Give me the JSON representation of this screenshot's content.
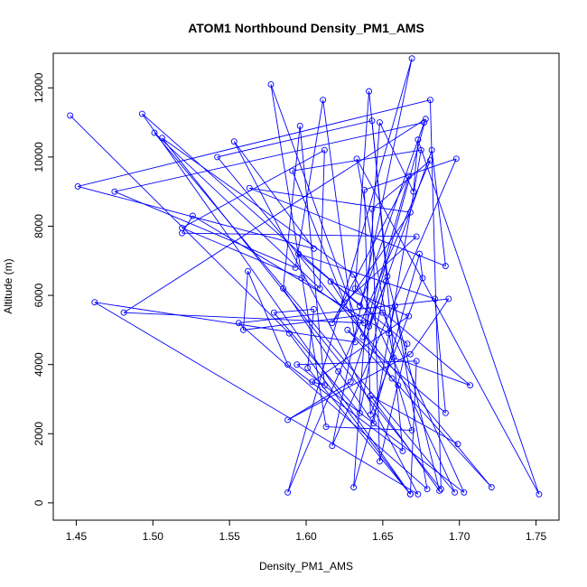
{
  "chart_data": {
    "type": "line",
    "title": "ATOM1 Northbound Density_PM1_AMS",
    "xlabel": "Density_PM1_AMS",
    "ylabel": "Altitude (m)",
    "xlim": [
      1.435,
      1.765
    ],
    "ylim": [
      -500,
      13000
    ],
    "x_ticks": [
      1.45,
      1.5,
      1.55,
      1.6,
      1.65,
      1.7,
      1.75
    ],
    "x_tick_labels": [
      "1.45",
      "1.50",
      "1.55",
      "1.60",
      "1.65",
      "1.70",
      "1.75"
    ],
    "y_ticks": [
      0,
      2000,
      4000,
      6000,
      8000,
      10000,
      12000
    ],
    "y_tick_labels": [
      "0",
      "2000",
      "4000",
      "6000",
      "8000",
      "10000",
      "12000"
    ],
    "grid": false,
    "series": [
      {
        "color": "#0000ff",
        "marker": "open-circle",
        "x": [
          1.446,
          1.589,
          1.668,
          1.493,
          1.635,
          1.677,
          1.475,
          1.593,
          1.611,
          1.632,
          1.462,
          1.673,
          1.553,
          1.605,
          1.451,
          1.681,
          1.688,
          1.506,
          1.631,
          1.697,
          1.501,
          1.609,
          1.612,
          1.519,
          1.597,
          1.638,
          1.481,
          1.678,
          1.641,
          1.652,
          1.635,
          1.579,
          1.605,
          1.601,
          1.668,
          1.672,
          1.594,
          1.703,
          1.65,
          1.559,
          1.562,
          1.588,
          1.663,
          1.643,
          1.542,
          1.721,
          1.656,
          1.616,
          1.667,
          1.604,
          1.612,
          1.596,
          1.585,
          1.621,
          1.644,
          1.675,
          1.591,
          1.625,
          1.672,
          1.519,
          1.526,
          1.654,
          1.658,
          1.679,
          1.556,
          1.693,
          1.668,
          1.588,
          1.629,
          1.682,
          1.691,
          1.563,
          1.668,
          1.617,
          1.667,
          1.637,
          1.577,
          1.613,
          1.669,
          1.66,
          1.627,
          1.691,
          1.684,
          1.595,
          1.666,
          1.648,
          1.643,
          1.681,
          1.588,
          1.669,
          1.617,
          1.698,
          1.638,
          1.642,
          1.676,
          1.674,
          1.631,
          1.648,
          1.67,
          1.673,
          1.752,
          1.633,
          1.657,
          1.707,
          1.632,
          1.641,
          1.653,
          1.687,
          1.642,
          1.699
        ],
        "y": [
          11200,
          4900,
          250,
          11250,
          5700,
          11000,
          9000,
          6800,
          11650,
          4650,
          5800,
          250,
          10450,
          7350,
          9150,
          11650,
          400,
          10550,
          6600,
          300,
          10700,
          6200,
          10200,
          7950,
          6500,
          5200,
          5500,
          11100,
          5100,
          6400,
          2600,
          5500,
          5600,
          3900,
          250,
          4100,
          4000,
          300,
          5500,
          5000,
          6700,
          4000,
          1500,
          11050,
          10000,
          450,
          3600,
          6400,
          5400,
          3500,
          3400,
          10900,
          6200,
          3800,
          2300,
          10200,
          9600,
          5800,
          7700,
          7800,
          8300,
          4900,
          5700,
          400,
          5200,
          5900,
          4300,
          2400,
          3500,
          10200,
          6850,
          9100,
          8400,
          5200,
          9450,
          4800,
          12100,
          2200,
          2100,
          3400,
          5000,
          2600,
          5900,
          7200,
          4600,
          1200,
          8500,
          9900,
          300,
          12850,
          1650,
          9950,
          9050,
          2550,
          6500,
          7200,
          450,
          11000,
          9000,
          10500,
          250,
          9950,
          4200,
          3400,
          6200,
          11900,
          6550,
          350,
          3100,
          1700
        ]
      }
    ]
  }
}
